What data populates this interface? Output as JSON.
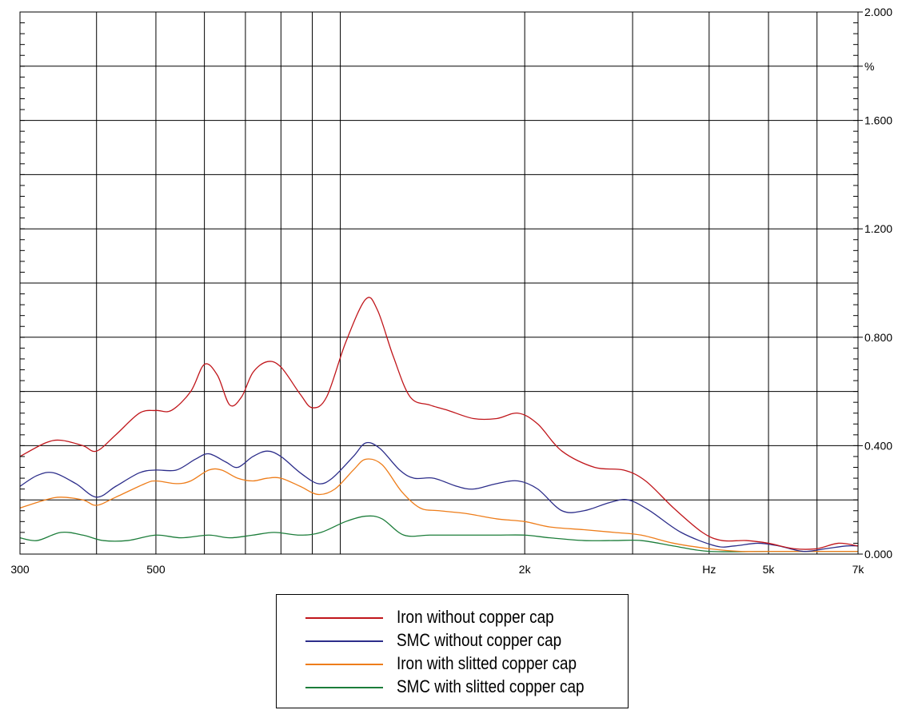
{
  "chart_data": {
    "type": "line",
    "x_scale": "log",
    "xlim": [
      300,
      7000
    ],
    "ylim": [
      0,
      2.0
    ],
    "grid": true,
    "legend_position": "bottom-center",
    "x_tick_labels": [
      {
        "value": 300,
        "label": "300"
      },
      {
        "value": 500,
        "label": "500"
      },
      {
        "value": 2000,
        "label": "2k"
      },
      {
        "value": 4000,
        "label": "Hz"
      },
      {
        "value": 5000,
        "label": "5k"
      },
      {
        "value": 7000,
        "label": "7k"
      }
    ],
    "x_gridlines": [
      400,
      500,
      600,
      700,
      800,
      900,
      1000,
      2000,
      3000,
      4000,
      5000,
      6000
    ],
    "y_tick_labels": [
      {
        "value": 2.0,
        "label": "2.000"
      },
      {
        "value": 1.8,
        "label": "%"
      },
      {
        "value": 1.6,
        "label": "1.600"
      },
      {
        "value": 1.2,
        "label": "1.200"
      },
      {
        "value": 0.8,
        "label": "0.800"
      },
      {
        "value": 0.4,
        "label": "0.400"
      },
      {
        "value": 0.0,
        "label": "0.000"
      }
    ],
    "y_gridlines": [
      0.2,
      0.4,
      0.6,
      0.8,
      1.0,
      1.2,
      1.4,
      1.6,
      1.8
    ],
    "series": [
      {
        "name": "Iron without copper cap",
        "color": "#c0161b",
        "points": [
          [
            300,
            0.36
          ],
          [
            330,
            0.41
          ],
          [
            350,
            0.42
          ],
          [
            380,
            0.4
          ],
          [
            400,
            0.38
          ],
          [
            430,
            0.44
          ],
          [
            470,
            0.52
          ],
          [
            500,
            0.53
          ],
          [
            530,
            0.53
          ],
          [
            570,
            0.6
          ],
          [
            600,
            0.7
          ],
          [
            630,
            0.66
          ],
          [
            660,
            0.55
          ],
          [
            690,
            0.58
          ],
          [
            720,
            0.67
          ],
          [
            760,
            0.71
          ],
          [
            800,
            0.69
          ],
          [
            860,
            0.59
          ],
          [
            900,
            0.54
          ],
          [
            950,
            0.58
          ],
          [
            1020,
            0.78
          ],
          [
            1100,
            0.94
          ],
          [
            1150,
            0.9
          ],
          [
            1220,
            0.73
          ],
          [
            1300,
            0.58
          ],
          [
            1400,
            0.55
          ],
          [
            1500,
            0.53
          ],
          [
            1650,
            0.5
          ],
          [
            1800,
            0.5
          ],
          [
            1950,
            0.52
          ],
          [
            2100,
            0.48
          ],
          [
            2300,
            0.38
          ],
          [
            2600,
            0.32
          ],
          [
            2900,
            0.31
          ],
          [
            3150,
            0.27
          ],
          [
            3500,
            0.17
          ],
          [
            3900,
            0.08
          ],
          [
            4200,
            0.05
          ],
          [
            4600,
            0.05
          ],
          [
            5000,
            0.04
          ],
          [
            5500,
            0.02
          ],
          [
            6000,
            0.02
          ],
          [
            6500,
            0.04
          ],
          [
            7000,
            0.03
          ]
        ]
      },
      {
        "name": "SMC without copper cap",
        "color": "#2c2d8a",
        "points": [
          [
            300,
            0.25
          ],
          [
            320,
            0.29
          ],
          [
            340,
            0.3
          ],
          [
            370,
            0.26
          ],
          [
            400,
            0.21
          ],
          [
            430,
            0.25
          ],
          [
            470,
            0.3
          ],
          [
            500,
            0.31
          ],
          [
            540,
            0.31
          ],
          [
            580,
            0.35
          ],
          [
            610,
            0.37
          ],
          [
            650,
            0.34
          ],
          [
            680,
            0.32
          ],
          [
            720,
            0.36
          ],
          [
            760,
            0.38
          ],
          [
            800,
            0.36
          ],
          [
            860,
            0.3
          ],
          [
            920,
            0.26
          ],
          [
            970,
            0.28
          ],
          [
            1050,
            0.36
          ],
          [
            1100,
            0.41
          ],
          [
            1160,
            0.39
          ],
          [
            1250,
            0.31
          ],
          [
            1320,
            0.28
          ],
          [
            1420,
            0.28
          ],
          [
            1550,
            0.25
          ],
          [
            1650,
            0.24
          ],
          [
            1800,
            0.26
          ],
          [
            1950,
            0.27
          ],
          [
            2100,
            0.24
          ],
          [
            2300,
            0.16
          ],
          [
            2500,
            0.16
          ],
          [
            2750,
            0.19
          ],
          [
            2950,
            0.2
          ],
          [
            3200,
            0.16
          ],
          [
            3600,
            0.08
          ],
          [
            4100,
            0.03
          ],
          [
            4400,
            0.03
          ],
          [
            4800,
            0.04
          ],
          [
            5200,
            0.03
          ],
          [
            5700,
            0.01
          ],
          [
            6200,
            0.02
          ],
          [
            6700,
            0.03
          ],
          [
            7000,
            0.03
          ]
        ]
      },
      {
        "name": "Iron with slitted copper cap",
        "color": "#ee7d1a",
        "points": [
          [
            300,
            0.17
          ],
          [
            330,
            0.2
          ],
          [
            350,
            0.21
          ],
          [
            380,
            0.2
          ],
          [
            400,
            0.18
          ],
          [
            430,
            0.21
          ],
          [
            480,
            0.26
          ],
          [
            500,
            0.27
          ],
          [
            540,
            0.26
          ],
          [
            570,
            0.27
          ],
          [
            610,
            0.31
          ],
          [
            640,
            0.31
          ],
          [
            680,
            0.28
          ],
          [
            720,
            0.27
          ],
          [
            760,
            0.28
          ],
          [
            800,
            0.28
          ],
          [
            860,
            0.25
          ],
          [
            920,
            0.22
          ],
          [
            980,
            0.24
          ],
          [
            1050,
            0.31
          ],
          [
            1100,
            0.35
          ],
          [
            1170,
            0.33
          ],
          [
            1260,
            0.23
          ],
          [
            1350,
            0.17
          ],
          [
            1450,
            0.16
          ],
          [
            1600,
            0.15
          ],
          [
            1800,
            0.13
          ],
          [
            2000,
            0.12
          ],
          [
            2200,
            0.1
          ],
          [
            2500,
            0.09
          ],
          [
            2800,
            0.08
          ],
          [
            3100,
            0.07
          ],
          [
            3500,
            0.04
          ],
          [
            4000,
            0.02
          ],
          [
            4500,
            0.01
          ],
          [
            5000,
            0.01
          ],
          [
            6000,
            0.01
          ],
          [
            7000,
            0.01
          ]
        ]
      },
      {
        "name": "SMC with slitted copper cap",
        "color": "#1c7d3a",
        "points": [
          [
            300,
            0.06
          ],
          [
            320,
            0.05
          ],
          [
            350,
            0.08
          ],
          [
            380,
            0.07
          ],
          [
            410,
            0.05
          ],
          [
            450,
            0.05
          ],
          [
            500,
            0.07
          ],
          [
            550,
            0.06
          ],
          [
            610,
            0.07
          ],
          [
            660,
            0.06
          ],
          [
            720,
            0.07
          ],
          [
            780,
            0.08
          ],
          [
            860,
            0.07
          ],
          [
            930,
            0.08
          ],
          [
            1020,
            0.12
          ],
          [
            1100,
            0.14
          ],
          [
            1170,
            0.13
          ],
          [
            1270,
            0.07
          ],
          [
            1400,
            0.07
          ],
          [
            1600,
            0.07
          ],
          [
            1800,
            0.07
          ],
          [
            2000,
            0.07
          ],
          [
            2200,
            0.06
          ],
          [
            2500,
            0.05
          ],
          [
            2800,
            0.05
          ],
          [
            3100,
            0.05
          ],
          [
            3500,
            0.03
          ],
          [
            4000,
            0.01
          ],
          [
            5000,
            0.01
          ],
          [
            6000,
            0.01
          ],
          [
            7000,
            0.01
          ]
        ]
      }
    ]
  }
}
